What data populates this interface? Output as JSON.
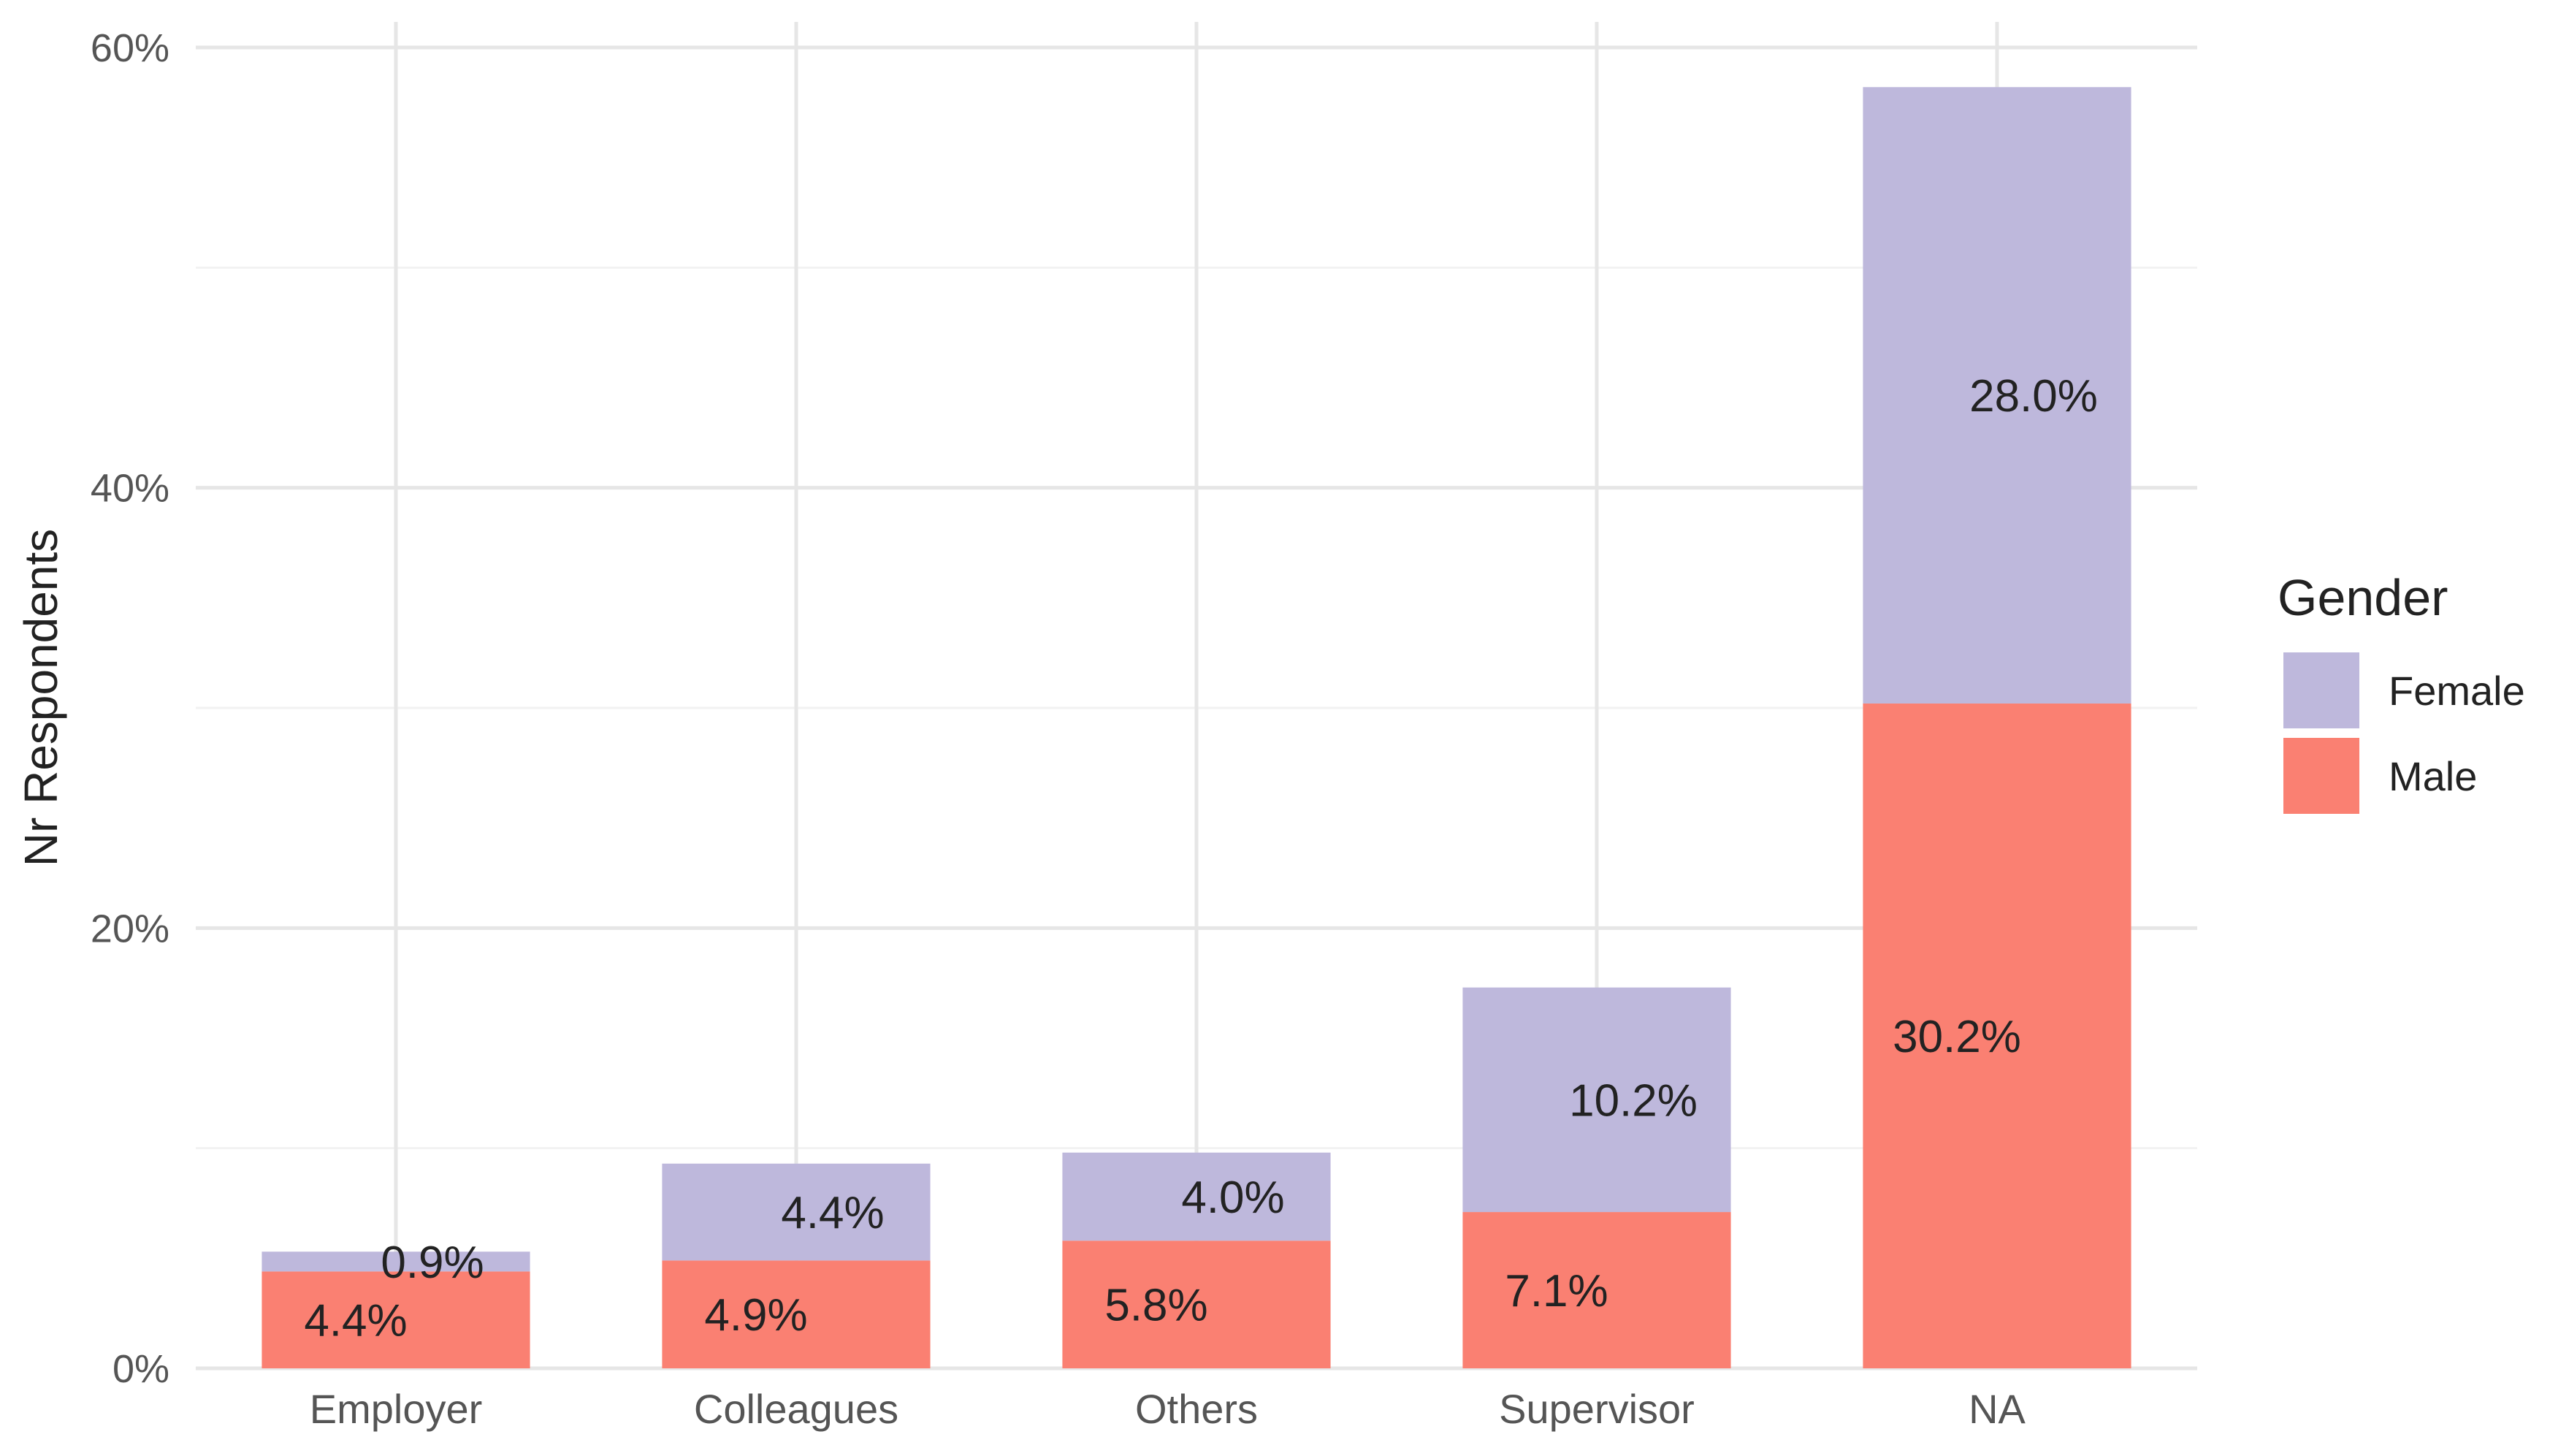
{
  "chart_data": {
    "type": "bar",
    "stacked": true,
    "title": "",
    "xlabel": "",
    "ylabel": "Nr Respondents",
    "ylim": [
      0,
      60
    ],
    "y_ticks": [
      0,
      20,
      40,
      60
    ],
    "y_tick_labels": [
      "0%",
      "20%",
      "40%",
      "60%"
    ],
    "grid": true,
    "legend_position": "right",
    "legend_title": "Gender",
    "categories": [
      "Employer",
      "Colleagues",
      "Others",
      "Supervisor",
      "NA"
    ],
    "series": [
      {
        "name": "Male",
        "color": "#FA8072",
        "values": [
          4.4,
          4.9,
          5.8,
          7.1,
          30.2
        ],
        "labels": [
          "4.4%",
          "4.9%",
          "5.8%",
          "7.1%",
          "30.2%"
        ]
      },
      {
        "name": "Female",
        "color": "#BEB8DC",
        "values": [
          0.9,
          4.4,
          4.0,
          10.2,
          28.0
        ],
        "labels": [
          "0.9%",
          "4.4%",
          "4.0%",
          "10.2%",
          "28.0%"
        ]
      }
    ],
    "legend_order": [
      "Female",
      "Male"
    ]
  }
}
